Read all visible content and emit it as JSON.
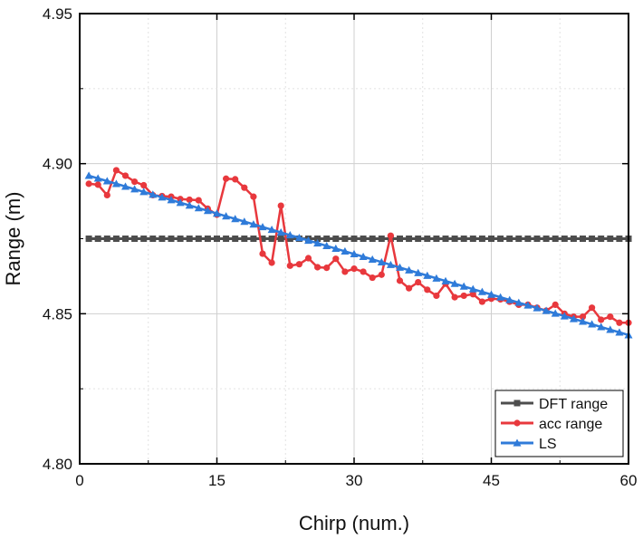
{
  "chart_data": {
    "type": "line",
    "title": "",
    "xlabel": "Chirp (num.)",
    "ylabel": "Range (m)",
    "xlim": [
      0,
      60
    ],
    "ylim": [
      4.8,
      4.95
    ],
    "xticks": [
      0,
      15,
      30,
      45,
      60
    ],
    "xtick_labels": [
      "0",
      "15",
      "30",
      "45",
      "60"
    ],
    "yticks": [
      4.8,
      4.85,
      4.9,
      4.95
    ],
    "ytick_labels": [
      "4.80",
      "4.85",
      "4.90",
      "4.95"
    ],
    "grid": true,
    "legend_position": "bottom-right",
    "series": [
      {
        "name": "DFT range",
        "color": "#4d4d4d",
        "marker": "square",
        "x": [
          1,
          2,
          3,
          4,
          5,
          6,
          7,
          8,
          9,
          10,
          11,
          12,
          13,
          14,
          15,
          16,
          17,
          18,
          19,
          20,
          21,
          22,
          23,
          24,
          25,
          26,
          27,
          28,
          29,
          30,
          31,
          32,
          33,
          34,
          35,
          36,
          37,
          38,
          39,
          40,
          41,
          42,
          43,
          44,
          45,
          46,
          47,
          48,
          49,
          50,
          51,
          52,
          53,
          54,
          55,
          56,
          57,
          58,
          59,
          60
        ],
        "values": [
          4.875,
          4.875,
          4.875,
          4.875,
          4.875,
          4.875,
          4.875,
          4.875,
          4.875,
          4.875,
          4.875,
          4.875,
          4.875,
          4.875,
          4.875,
          4.875,
          4.875,
          4.875,
          4.875,
          4.875,
          4.875,
          4.875,
          4.875,
          4.875,
          4.875,
          4.875,
          4.875,
          4.875,
          4.875,
          4.875,
          4.875,
          4.875,
          4.875,
          4.875,
          4.875,
          4.875,
          4.875,
          4.875,
          4.875,
          4.875,
          4.875,
          4.875,
          4.875,
          4.875,
          4.875,
          4.875,
          4.875,
          4.875,
          4.875,
          4.875,
          4.875,
          4.875,
          4.875,
          4.875,
          4.875,
          4.875,
          4.875,
          4.875,
          4.875,
          4.875
        ]
      },
      {
        "name": "acc range",
        "color": "#e8383d",
        "marker": "circle",
        "x": [
          1,
          2,
          3,
          4,
          5,
          6,
          7,
          8,
          9,
          10,
          11,
          12,
          13,
          14,
          15,
          16,
          17,
          18,
          19,
          20,
          21,
          22,
          23,
          24,
          25,
          26,
          27,
          28,
          29,
          30,
          31,
          32,
          33,
          34,
          35,
          36,
          37,
          38,
          39,
          40,
          41,
          42,
          43,
          44,
          45,
          46,
          47,
          48,
          49,
          50,
          51,
          52,
          53,
          54,
          55,
          56,
          57,
          58,
          59,
          60
        ],
        "values": [
          4.8933,
          4.893,
          4.8895,
          4.8978,
          4.896,
          4.894,
          4.8928,
          4.8895,
          4.8892,
          4.889,
          4.8882,
          4.888,
          4.8878,
          4.885,
          4.883,
          4.895,
          4.8948,
          4.892,
          4.889,
          4.87,
          4.867,
          4.886,
          4.866,
          4.8665,
          4.8685,
          4.8655,
          4.8653,
          4.8683,
          4.864,
          4.865,
          4.864,
          4.862,
          4.863,
          4.876,
          4.861,
          4.8585,
          4.8605,
          4.858,
          4.856,
          4.86,
          4.8555,
          4.856,
          4.8565,
          4.854,
          4.855,
          4.8548,
          4.854,
          4.853,
          4.853,
          4.852,
          4.851,
          4.853,
          4.85,
          4.849,
          4.849,
          4.852,
          4.848,
          4.849,
          4.847,
          4.847
        ]
      },
      {
        "name": "LS",
        "color": "#2f7bd9",
        "marker": "triangle",
        "x": [
          1,
          2,
          3,
          4,
          5,
          6,
          7,
          8,
          9,
          10,
          11,
          12,
          13,
          14,
          15,
          16,
          17,
          18,
          19,
          20,
          21,
          22,
          23,
          24,
          25,
          26,
          27,
          28,
          29,
          30,
          31,
          32,
          33,
          34,
          35,
          36,
          37,
          38,
          39,
          40,
          41,
          42,
          43,
          44,
          45,
          46,
          47,
          48,
          49,
          50,
          51,
          52,
          53,
          54,
          55,
          56,
          57,
          58,
          59,
          60
        ],
        "values": [
          4.896,
          4.8951,
          4.8942,
          4.8933,
          4.8924,
          4.8915,
          4.8906,
          4.8897,
          4.8888,
          4.8879,
          4.887,
          4.8861,
          4.8852,
          4.8843,
          4.8834,
          4.8825,
          4.8816,
          4.8807,
          4.8798,
          4.8789,
          4.878,
          4.8771,
          4.8762,
          4.8753,
          4.8744,
          4.8735,
          4.8726,
          4.8717,
          4.8708,
          4.8699,
          4.869,
          4.8681,
          4.8672,
          4.8663,
          4.8654,
          4.8645,
          4.8636,
          4.8627,
          4.8618,
          4.8609,
          4.86,
          4.8591,
          4.8582,
          4.8573,
          4.8564,
          4.8555,
          4.8546,
          4.8537,
          4.8528,
          4.8519,
          4.851,
          4.8501,
          4.8492,
          4.8483,
          4.8474,
          4.8465,
          4.8456,
          4.8447,
          4.8438,
          4.8429
        ]
      }
    ]
  }
}
